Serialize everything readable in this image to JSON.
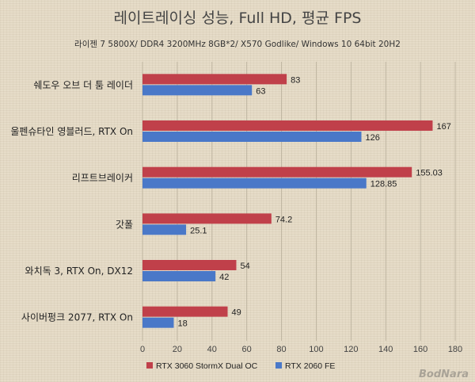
{
  "chart_data": {
    "type": "bar",
    "orientation": "horizontal",
    "title": "레이트레이싱 성능, Full HD, 평균 FPS",
    "subtitle": "라이젠 7 5800X/ DDR4 3200MHz 8GB*2/ X570 Godlike/ Windows 10 64bit 20H2",
    "categories": [
      "쉐도우 오브 더 툼 레이더",
      "울펜슈타인 영블러드, RTX On",
      "리프트브레이커",
      "갓폴",
      "와치독 3, RTX On, DX12",
      "사이버펑크 2077, RTX On"
    ],
    "series": [
      {
        "name": "RTX 3060 StormX Dual OC",
        "color": "#c0404a",
        "values": [
          83,
          167,
          155.03,
          74.2,
          54,
          49
        ],
        "labels": [
          "83",
          "167",
          "155.03",
          "74.2",
          "54",
          "49"
        ]
      },
      {
        "name": "RTX 2060 FE",
        "color": "#4a78c8",
        "values": [
          63,
          126,
          128.85,
          25.1,
          42,
          18
        ],
        "labels": [
          "63",
          "126",
          "128.85",
          "25.1",
          "42",
          "18"
        ]
      }
    ],
    "xlim": [
      0,
      180
    ],
    "xticks": [
      0,
      20,
      40,
      60,
      80,
      100,
      120,
      140,
      160,
      180
    ],
    "grid": true,
    "legend_position": "bottom"
  },
  "watermark": "BodNara"
}
